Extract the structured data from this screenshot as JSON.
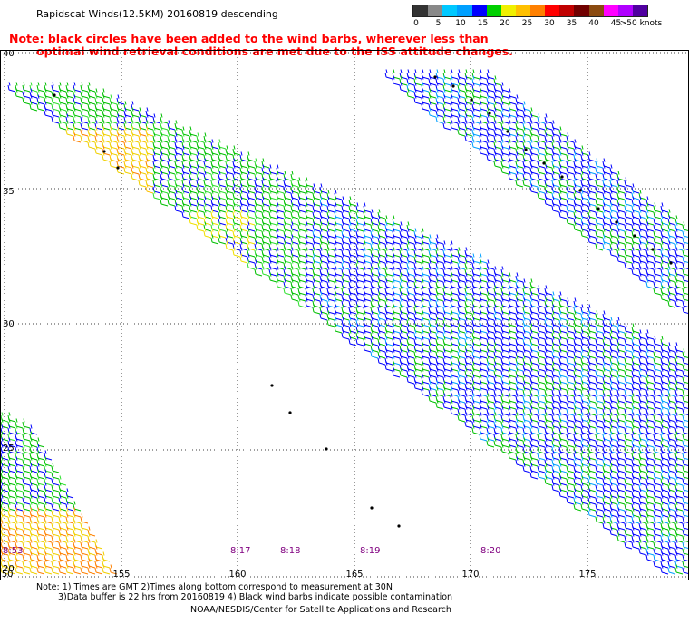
{
  "title": "Rapidscat Winds(12.5KM) 20160819 descending",
  "note": {
    "line1": "Note: black circles have been added to the wind barbs, wherever less than",
    "line2": "optimal wind retrieval conditions are met due to the ISS attitude changes."
  },
  "legend": {
    "unit": "knots",
    "labels": [
      "0",
      "5",
      "10",
      "15",
      "20",
      "25",
      "30",
      "35",
      "40",
      "45",
      ">50 knots"
    ],
    "colors": [
      "#333333",
      "#888888",
      "#00c8ff",
      "#00a0ff",
      "#0000ff",
      "#00d000",
      "#f0f000",
      "#ffc000",
      "#ff8000",
      "#ff0000",
      "#c00000",
      "#700000",
      "#8a4a10",
      "#ff00ff",
      "#b000ff",
      "#5000a0"
    ]
  },
  "map": {
    "lat_labels": [
      "40",
      "35",
      "30",
      "25",
      "20"
    ],
    "lon_labels": [
      "150",
      "155",
      "160",
      "165",
      "170",
      "175"
    ],
    "times": [
      "8:53",
      "8:17",
      "8:18",
      "8:19",
      "8:20"
    ]
  },
  "footer": {
    "line1": "Note: 1) Times are GMT 2)Times along bottom correspond to measurement at 30N",
    "line2": "3)Data buffer is 22 hrs from 20160819 4) Black wind barbs indicate possible contamination",
    "line3": "NOAA/NESDIS/Center for Satellite Applications and Research"
  }
}
